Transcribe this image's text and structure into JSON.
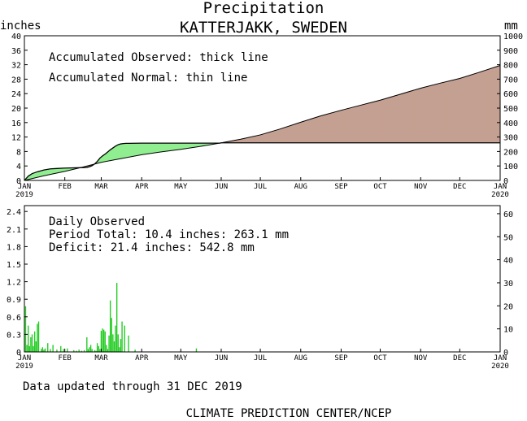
{
  "header": {
    "title": "Precipitation",
    "subtitle": "KATTERJAKK, SWEDEN"
  },
  "footer": {
    "updated": "Data updated through 31 DEC 2019",
    "credit": "CLIMATE PREDICTION CENTER/NCEP"
  },
  "colors": {
    "surplus": "#90ee90",
    "deficit": "#c4a092",
    "bars": "#22cc22",
    "axis": "#000000"
  },
  "chart_data": [
    {
      "type": "area",
      "left_unit": "inches",
      "right_unit": "mm",
      "yticks_left": [
        0,
        4,
        8,
        12,
        16,
        20,
        24,
        28,
        32,
        36,
        40
      ],
      "yticks_right": [
        0,
        100,
        200,
        300,
        400,
        500,
        600,
        700,
        800,
        900,
        1000
      ],
      "ylim": [
        0,
        40
      ],
      "xlim": [
        0,
        365
      ],
      "month_labels": [
        "JAN",
        "FEB",
        "MAR",
        "APR",
        "MAY",
        "JUN",
        "JUL",
        "AUG",
        "SEP",
        "OCT",
        "NOV",
        "DEC",
        "JAN"
      ],
      "year_start": "2019",
      "year_end": "2020",
      "annotation1": "Accumulated Observed: thick line",
      "annotation2": "Accumulated Normal: thin line",
      "observed": {
        "x": [
          0,
          3,
          6,
          10,
          15,
          20,
          25,
          30,
          35,
          40,
          45,
          48,
          50,
          52,
          54,
          56,
          58,
          60,
          62,
          64,
          66,
          68,
          70,
          72,
          74,
          76,
          78,
          80,
          90,
          120,
          140,
          150,
          151,
          365
        ],
        "y": [
          0,
          1.2,
          1.9,
          2.4,
          2.9,
          3.2,
          3.3,
          3.4,
          3.45,
          3.5,
          3.55,
          3.6,
          3.8,
          4.1,
          4.6,
          5.3,
          6.2,
          6.8,
          7.3,
          7.9,
          8.5,
          9.0,
          9.5,
          9.9,
          10.1,
          10.2,
          10.25,
          10.25,
          10.3,
          10.3,
          10.3,
          10.3,
          10.4,
          10.4
        ]
      },
      "normal": {
        "x": [
          0,
          15,
          31,
          45,
          59,
          75,
          90,
          105,
          120,
          135,
          151,
          166,
          181,
          196,
          212,
          227,
          243,
          258,
          273,
          288,
          304,
          319,
          334,
          349,
          365
        ],
        "y": [
          0,
          1.3,
          2.5,
          3.7,
          5.0,
          6.1,
          7.1,
          7.9,
          8.6,
          9.4,
          10.4,
          11.4,
          12.6,
          14.2,
          16.1,
          17.8,
          19.4,
          20.8,
          22.2,
          23.8,
          25.5,
          26.9,
          28.2,
          29.9,
          31.8
        ]
      }
    },
    {
      "type": "bar",
      "left_unit": "inches",
      "right_unit": "mm",
      "yticks_left": [
        "0",
        "0.3",
        "0.6",
        "0.9",
        "1.2",
        "1.5",
        "1.8",
        "2.1",
        "2.4"
      ],
      "yticks_right": [
        0,
        10,
        20,
        30,
        40,
        50,
        60
      ],
      "ylim": [
        0,
        2.5
      ],
      "xlim": [
        0,
        365
      ],
      "month_labels": [
        "JAN",
        "FEB",
        "MAR",
        "APR",
        "MAY",
        "JUN",
        "JUL",
        "AUG",
        "SEP",
        "OCT",
        "NOV",
        "DEC",
        "JAN"
      ],
      "year_start": "2019",
      "year_end": "2020",
      "label": "Daily Observed",
      "period_total": "Period Total:   10.4 inches:    263.1 mm",
      "deficit": "Deficit:   21.4 inches:   542.8 mm",
      "days": [
        1,
        2,
        3,
        4,
        5,
        6,
        7,
        8,
        9,
        10,
        11,
        13,
        14,
        15,
        16,
        18,
        20,
        22,
        25,
        28,
        30,
        33,
        38,
        40,
        42,
        44,
        46,
        48,
        49,
        50,
        51,
        52,
        54,
        55,
        56,
        57,
        58,
        59,
        60,
        61,
        62,
        63,
        64,
        65,
        66,
        67,
        68,
        69,
        70,
        71,
        72,
        73,
        74,
        75,
        77,
        80,
        85,
        132
      ],
      "values": [
        0.78,
        0.12,
        0.45,
        0.1,
        0.25,
        0.3,
        0.1,
        0.35,
        0.18,
        0.48,
        0.52,
        0.05,
        0.08,
        0.04,
        0.06,
        0.15,
        0.05,
        0.12,
        0.04,
        0.1,
        0.05,
        0.06,
        0.03,
        0.02,
        0.04,
        0.02,
        0.03,
        0.25,
        0.05,
        0.08,
        0.12,
        0.05,
        0.03,
        0.02,
        0.15,
        0.1,
        0.05,
        0.36,
        0.4,
        0.38,
        0.35,
        0.12,
        0.05,
        0.28,
        0.88,
        0.58,
        0.3,
        0.18,
        0.45,
        1.18,
        0.3,
        0.08,
        0.22,
        0.52,
        0.45,
        0.28,
        0.04,
        0.06
      ]
    }
  ]
}
